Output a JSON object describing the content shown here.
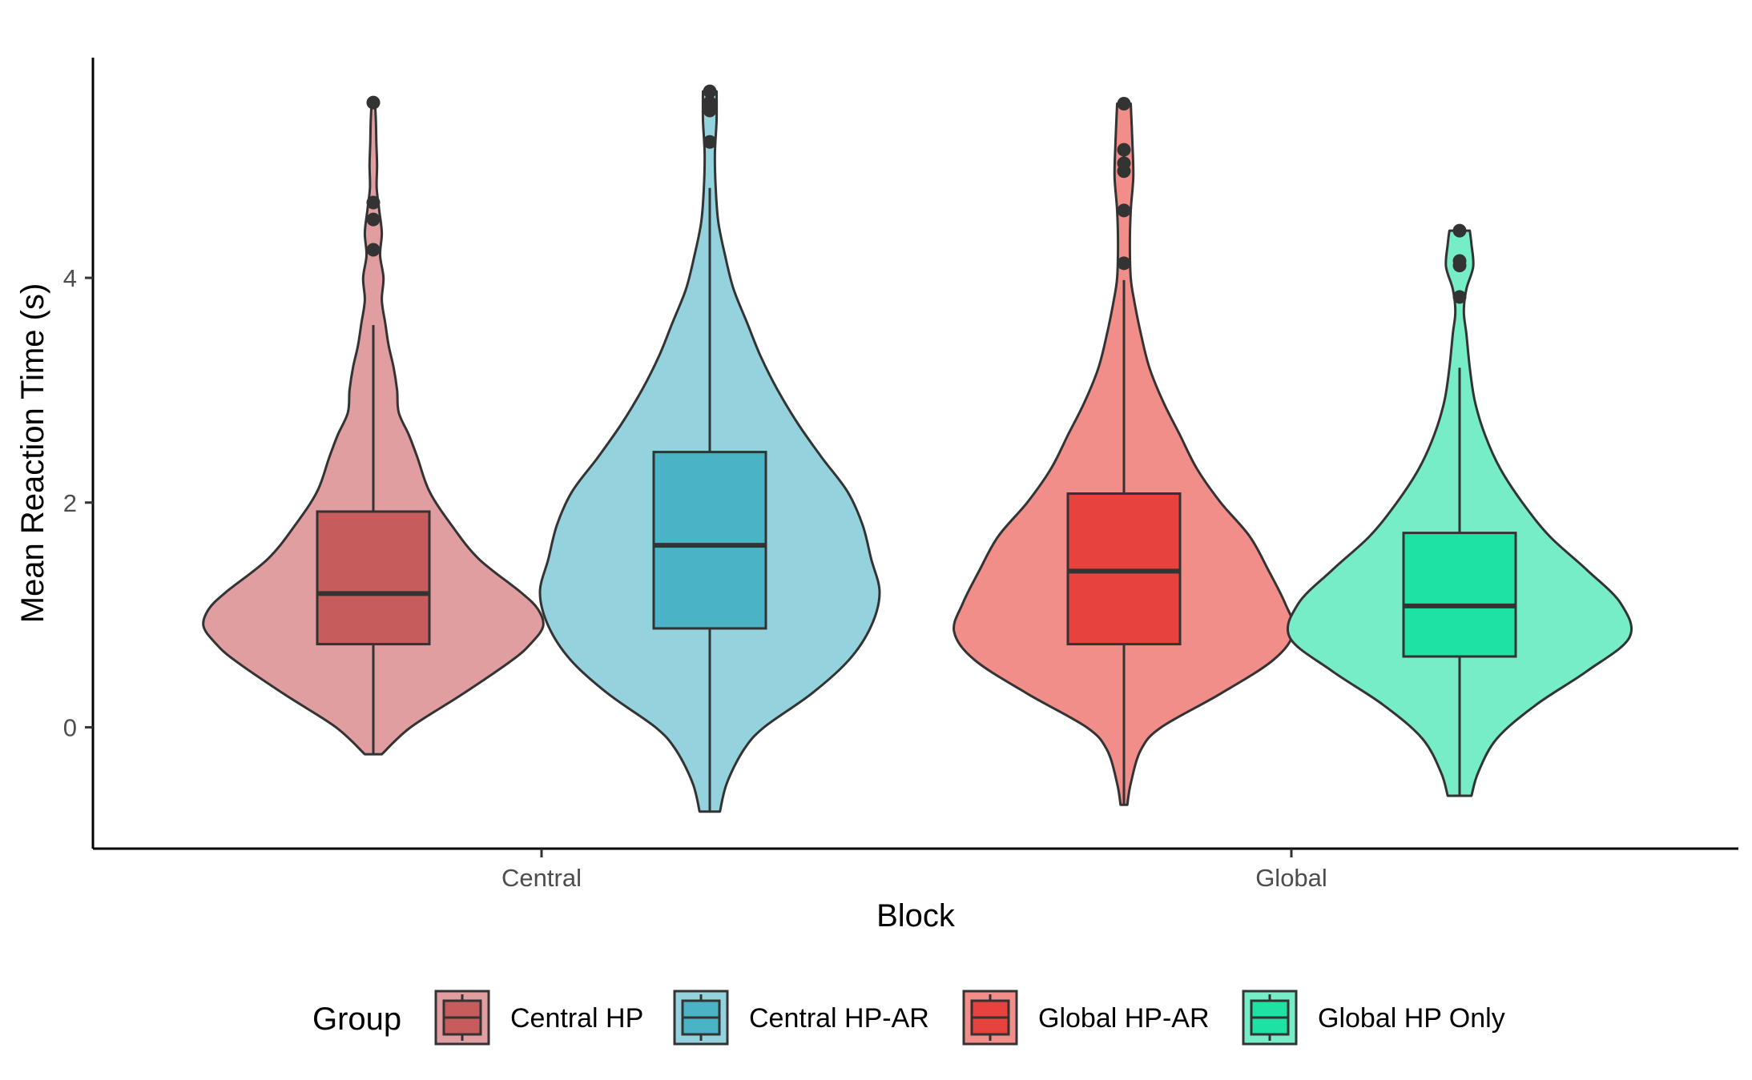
{
  "chart_data": {
    "type": "violin",
    "xlabel": "Block",
    "ylabel": "Mean Reaction Time (s)",
    "categories": [
      "Central",
      "Global"
    ],
    "y_ticks": [
      "0",
      "2",
      "4"
    ],
    "ylim": [
      -1.08,
      5.96
    ],
    "grid": false,
    "legend": {
      "title": "Group",
      "position": "bottom",
      "entries": [
        "Central HP",
        "Central HP-AR",
        "Global HP-AR",
        "Global HP Only"
      ]
    },
    "series": [
      {
        "name": "Central HP",
        "category": "Central",
        "violin_fill": "#e19ea1",
        "box_fill": "#c75c5d",
        "min": -0.24,
        "max": 5.56,
        "whisker_low": -0.24,
        "q1": 0.74,
        "median": 1.19,
        "q3": 1.92,
        "whisker_high": 3.58,
        "outliers": [
          4.25,
          4.52,
          4.67,
          5.56
        ],
        "density": [
          [
            -0.24,
            0.05
          ],
          [
            0.0,
            0.22
          ],
          [
            0.3,
            0.53
          ],
          [
            0.6,
            0.82
          ],
          [
            0.75,
            0.93
          ],
          [
            0.9,
            1.0
          ],
          [
            1.05,
            0.97
          ],
          [
            1.2,
            0.87
          ],
          [
            1.5,
            0.62
          ],
          [
            1.8,
            0.46
          ],
          [
            2.1,
            0.33
          ],
          [
            2.4,
            0.26
          ],
          [
            2.6,
            0.21
          ],
          [
            2.8,
            0.15
          ],
          [
            3.0,
            0.14
          ],
          [
            3.2,
            0.12
          ],
          [
            3.4,
            0.09
          ],
          [
            3.6,
            0.07
          ],
          [
            3.8,
            0.05
          ],
          [
            4.0,
            0.06
          ],
          [
            4.2,
            0.04
          ],
          [
            4.4,
            0.05
          ],
          [
            4.6,
            0.035
          ],
          [
            4.8,
            0.02
          ],
          [
            5.0,
            0.022
          ],
          [
            5.2,
            0.018
          ],
          [
            5.4,
            0.015
          ],
          [
            5.56,
            0.01
          ]
        ]
      },
      {
        "name": "Central HP-AR",
        "category": "Central",
        "violin_fill": "#94d3de",
        "box_fill": "#4ab4c6",
        "min": -0.75,
        "max": 5.66,
        "whisker_low": -0.75,
        "q1": 0.88,
        "median": 1.62,
        "q3": 2.45,
        "whisker_high": 4.8,
        "outliers": [
          5.21,
          5.49,
          5.56,
          5.66
        ],
        "density": [
          [
            -0.75,
            0.06
          ],
          [
            -0.5,
            0.1
          ],
          [
            -0.2,
            0.2
          ],
          [
            0.0,
            0.32
          ],
          [
            0.3,
            0.6
          ],
          [
            0.6,
            0.82
          ],
          [
            0.9,
            0.95
          ],
          [
            1.2,
            1.0
          ],
          [
            1.5,
            0.95
          ],
          [
            1.8,
            0.9
          ],
          [
            2.1,
            0.81
          ],
          [
            2.4,
            0.66
          ],
          [
            2.7,
            0.52
          ],
          [
            3.0,
            0.4
          ],
          [
            3.3,
            0.3
          ],
          [
            3.6,
            0.22
          ],
          [
            3.9,
            0.14
          ],
          [
            4.2,
            0.09
          ],
          [
            4.5,
            0.05
          ],
          [
            4.8,
            0.035
          ],
          [
            5.1,
            0.03
          ],
          [
            5.4,
            0.04
          ],
          [
            5.66,
            0.04
          ]
        ]
      },
      {
        "name": "Global HP-AR",
        "category": "Global",
        "violin_fill": "#f28e89",
        "box_fill": "#e7423d",
        "min": -0.69,
        "max": 5.55,
        "whisker_low": -0.69,
        "q1": 0.74,
        "median": 1.39,
        "q3": 2.08,
        "whisker_high": 3.98,
        "outliers": [
          4.13,
          4.6,
          4.95,
          5.02,
          5.14,
          5.55
        ],
        "density": [
          [
            -0.69,
            0.02
          ],
          [
            -0.5,
            0.04
          ],
          [
            -0.2,
            0.1
          ],
          [
            0.0,
            0.22
          ],
          [
            0.3,
            0.57
          ],
          [
            0.6,
            0.88
          ],
          [
            0.85,
            1.0
          ],
          [
            1.1,
            0.95
          ],
          [
            1.4,
            0.85
          ],
          [
            1.7,
            0.74
          ],
          [
            2.0,
            0.57
          ],
          [
            2.3,
            0.43
          ],
          [
            2.6,
            0.33
          ],
          [
            2.9,
            0.23
          ],
          [
            3.2,
            0.15
          ],
          [
            3.5,
            0.1
          ],
          [
            3.8,
            0.06
          ],
          [
            4.0,
            0.04
          ],
          [
            4.3,
            0.035
          ],
          [
            4.6,
            0.04
          ],
          [
            4.9,
            0.055
          ],
          [
            5.2,
            0.05
          ],
          [
            5.55,
            0.04
          ]
        ]
      },
      {
        "name": "Global HP Only",
        "category": "Global",
        "violin_fill": "#76edc7",
        "box_fill": "#1de2a3",
        "min": -0.61,
        "max": 4.42,
        "whisker_low": -0.61,
        "q1": 0.63,
        "median": 1.08,
        "q3": 1.73,
        "whisker_high": 3.2,
        "outliers": [
          3.83,
          4.11,
          4.15,
          4.42
        ],
        "density": [
          [
            -0.61,
            0.07
          ],
          [
            -0.4,
            0.11
          ],
          [
            -0.1,
            0.22
          ],
          [
            0.2,
            0.45
          ],
          [
            0.5,
            0.75
          ],
          [
            0.8,
            1.0
          ],
          [
            1.1,
            0.95
          ],
          [
            1.4,
            0.75
          ],
          [
            1.7,
            0.53
          ],
          [
            2.0,
            0.37
          ],
          [
            2.3,
            0.24
          ],
          [
            2.6,
            0.15
          ],
          [
            2.9,
            0.09
          ],
          [
            3.2,
            0.06
          ],
          [
            3.5,
            0.04
          ],
          [
            3.7,
            0.025
          ],
          [
            3.9,
            0.04
          ],
          [
            4.1,
            0.08
          ],
          [
            4.3,
            0.07
          ],
          [
            4.42,
            0.06
          ]
        ]
      }
    ]
  }
}
